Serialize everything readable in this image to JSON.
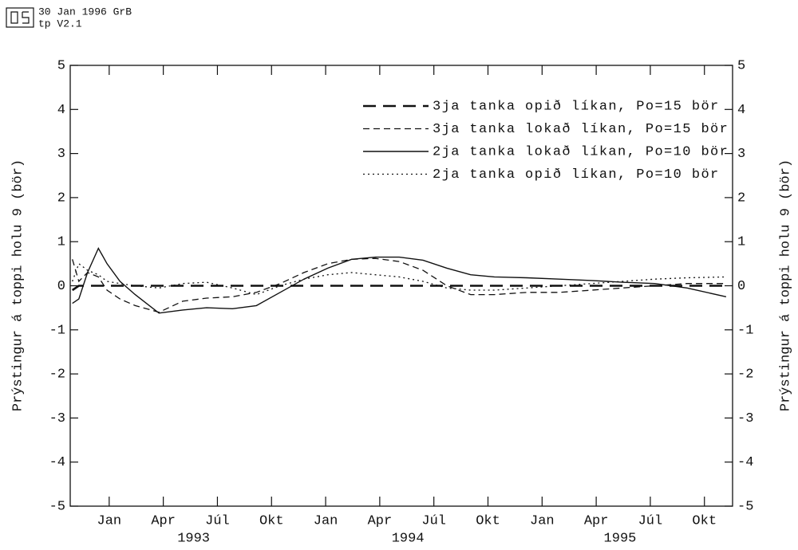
{
  "header": {
    "line1": "30 Jan 1996 GrB",
    "line2": "tp V2.1"
  },
  "chart_data": {
    "type": "line",
    "ylabel": "Prýstingur á toppi holu 9 (bör)",
    "x": [
      1992.87,
      1992.9,
      1992.94,
      1992.99,
      1993.03,
      1993.09,
      1993.16,
      1993.27,
      1993.38,
      1993.49,
      1993.61,
      1993.72,
      1993.83,
      1993.94,
      1994.05,
      1994.16,
      1994.27,
      1994.38,
      1994.49,
      1994.6,
      1994.71,
      1994.82,
      1994.97,
      1995.12,
      1995.27,
      1995.41,
      1995.56,
      1995.71,
      1995.89
    ],
    "series": [
      {
        "name": "3ja tanka opið líkan, Po=15 bör",
        "color": "#111111",
        "style": "long-dash",
        "values": [
          -0.1,
          0,
          0,
          0,
          0,
          0,
          0,
          0,
          0,
          0,
          0,
          0,
          0,
          0,
          0,
          0,
          0,
          0,
          0,
          0,
          0,
          0,
          0,
          0,
          0,
          0,
          0,
          0,
          0
        ]
      },
      {
        "name": "3ja tanka lokað líkan, Po=15 bör",
        "color": "#111111",
        "style": "dash",
        "values": [
          0.6,
          0.1,
          0.3,
          0.2,
          -0.1,
          -0.3,
          -0.45,
          -0.6,
          -0.35,
          -0.28,
          -0.25,
          -0.15,
          0.05,
          0.3,
          0.5,
          0.6,
          0.62,
          0.55,
          0.35,
          0.0,
          -0.2,
          -0.2,
          -0.15,
          -0.15,
          -0.1,
          -0.05,
          0,
          0.05,
          0.05
        ]
      },
      {
        "name": "2ja tanka lokað líkan, Po=10 bör",
        "color": "#111111",
        "style": "solid",
        "values": [
          -0.4,
          -0.3,
          0.3,
          0.85,
          0.5,
          0.1,
          -0.2,
          -0.62,
          -0.55,
          -0.5,
          -0.52,
          -0.45,
          -0.15,
          0.15,
          0.4,
          0.6,
          0.65,
          0.65,
          0.58,
          0.4,
          0.25,
          0.2,
          0.18,
          0.15,
          0.12,
          0.08,
          0.05,
          -0.05,
          -0.25
        ]
      },
      {
        "name": "2ja tanka opið líkan, Po=10 bör",
        "color": "#111111",
        "style": "dotted",
        "values": [
          0.1,
          0.5,
          0.35,
          0.25,
          0.1,
          0.05,
          0,
          -0.05,
          0.05,
          0.08,
          -0.05,
          -0.2,
          0,
          0.15,
          0.25,
          0.3,
          0.25,
          0.2,
          0.1,
          -0.05,
          -0.1,
          -0.1,
          -0.05,
          0,
          0.05,
          0.1,
          0.15,
          0.18,
          0.2
        ]
      }
    ],
    "xlim": [
      1992.86,
      1995.92
    ],
    "xticks": [
      {
        "value": 1993.04,
        "label": "Jan"
      },
      {
        "value": 1993.29,
        "label": "Apr"
      },
      {
        "value": 1993.54,
        "label": "Júl"
      },
      {
        "value": 1993.79,
        "label": "Okt"
      },
      {
        "value": 1994.04,
        "label": "Jan"
      },
      {
        "value": 1994.29,
        "label": "Apr"
      },
      {
        "value": 1994.54,
        "label": "Júl"
      },
      {
        "value": 1994.79,
        "label": "Okt"
      },
      {
        "value": 1995.04,
        "label": "Jan"
      },
      {
        "value": 1995.29,
        "label": "Apr"
      },
      {
        "value": 1995.54,
        "label": "Júl"
      },
      {
        "value": 1995.79,
        "label": "Okt"
      }
    ],
    "year_labels": [
      {
        "value": 1993.43,
        "label": "1993"
      },
      {
        "value": 1994.42,
        "label": "1994"
      },
      {
        "value": 1995.4,
        "label": "1995"
      }
    ],
    "ylim": [
      -5,
      5
    ],
    "yticks": [
      -5,
      -4,
      -3,
      -2,
      -1,
      0,
      1,
      2,
      3,
      4,
      5
    ],
    "y2lim": [
      -5,
      5
    ],
    "y2ticks": [
      -5,
      -4,
      -3,
      -2,
      -1,
      0,
      1,
      2,
      3,
      4,
      5
    ],
    "legend": "upper right"
  }
}
